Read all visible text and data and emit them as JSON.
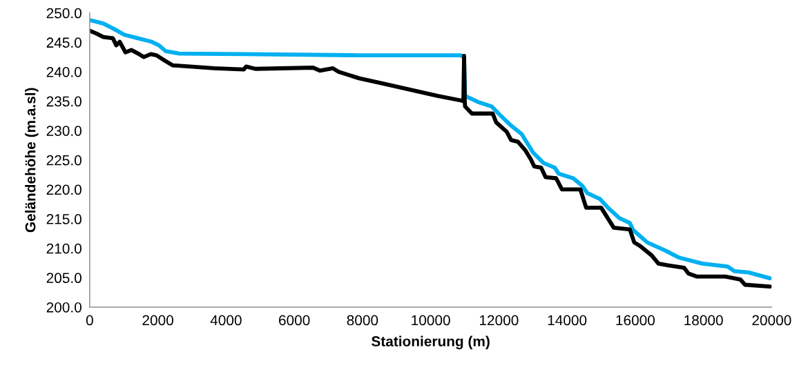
{
  "chart_data": {
    "type": "line",
    "xlabel": "Stationierung (m)",
    "ylabel": "Geländehöhe (m.a.sl)",
    "xlim": [
      0,
      20000
    ],
    "xticks": [
      0,
      2000,
      4000,
      6000,
      8000,
      10000,
      12000,
      14000,
      16000,
      18000,
      20000
    ],
    "ylim": [
      200,
      250
    ],
    "yticks": [
      {
        "value": 200,
        "label": "200.0"
      },
      {
        "value": 205,
        "label": "205.0"
      },
      {
        "value": 210,
        "label": "210.0"
      },
      {
        "value": 215,
        "label": "215.0"
      },
      {
        "value": 220,
        "label": "220.0"
      },
      {
        "value": 225,
        "label": "225.0"
      },
      {
        "value": 230,
        "label": "230.0"
      },
      {
        "value": 235,
        "label": "235.0"
      },
      {
        "value": 240,
        "label": "240.0"
      },
      {
        "value": 245,
        "label": "245.0"
      },
      {
        "value": 250,
        "label": "250.0"
      }
    ],
    "grid": false,
    "marker": "none",
    "line_style": "solid",
    "series": [
      {
        "color": "#00b0f0",
        "x": [
          0,
          400,
          740,
          1010,
          1350,
          1820,
          2030,
          2230,
          2630,
          4520,
          7900,
          10880,
          10980,
          11010,
          11420,
          11790,
          11990,
          12330,
          12670,
          13000,
          13310,
          13640,
          13750,
          14180,
          14450,
          14590,
          14960,
          15200,
          15540,
          15840,
          15940,
          16350,
          16890,
          17290,
          17970,
          18710,
          18910,
          19320,
          19950
        ],
        "values": [
          248.8,
          248.2,
          247.2,
          246.3,
          245.8,
          245.1,
          244.5,
          243.5,
          243.1,
          243.0,
          242.8,
          242.8,
          242.5,
          235.9,
          234.8,
          234.1,
          232.9,
          231.0,
          229.4,
          226.3,
          224.5,
          223.7,
          222.7,
          221.9,
          220.6,
          219.4,
          218.4,
          216.9,
          215.1,
          214.3,
          213.1,
          211.0,
          209.6,
          208.4,
          207.4,
          206.9,
          206.1,
          205.9,
          204.9
        ]
      },
      {
        "color": "#000000",
        "x": [
          0,
          200,
          400,
          680,
          780,
          880,
          1050,
          1220,
          1420,
          1590,
          1790,
          1960,
          2200,
          2430,
          3650,
          4520,
          4590,
          4860,
          6550,
          6750,
          7130,
          7300,
          7900,
          8610,
          10200,
          10910,
          10960,
          10980,
          11000,
          11010,
          11210,
          11820,
          11920,
          12230,
          12360,
          12560,
          12770,
          12940,
          13040,
          13240,
          13370,
          13680,
          13850,
          14390,
          14560,
          15000,
          15370,
          15840,
          15970,
          16140,
          16480,
          16680,
          16960,
          17430,
          17560,
          17800,
          18640,
          19080,
          19220,
          19950
        ],
        "values": [
          247.0,
          246.5,
          245.9,
          245.7,
          244.5,
          245.1,
          243.3,
          243.7,
          243.1,
          242.5,
          243.0,
          242.8,
          241.9,
          241.1,
          240.6,
          240.4,
          240.9,
          240.5,
          240.7,
          240.2,
          240.6,
          240.0,
          238.9,
          238.0,
          235.9,
          235.1,
          235.0,
          242.7,
          235.0,
          234.1,
          232.9,
          232.9,
          231.4,
          229.8,
          228.4,
          228.1,
          226.7,
          225.1,
          223.9,
          223.7,
          222.1,
          221.9,
          220.0,
          220.0,
          216.9,
          216.9,
          213.5,
          213.2,
          211.0,
          210.4,
          208.8,
          207.4,
          207.1,
          206.7,
          205.7,
          205.2,
          205.2,
          204.7,
          203.8,
          203.5
        ]
      }
    ]
  }
}
